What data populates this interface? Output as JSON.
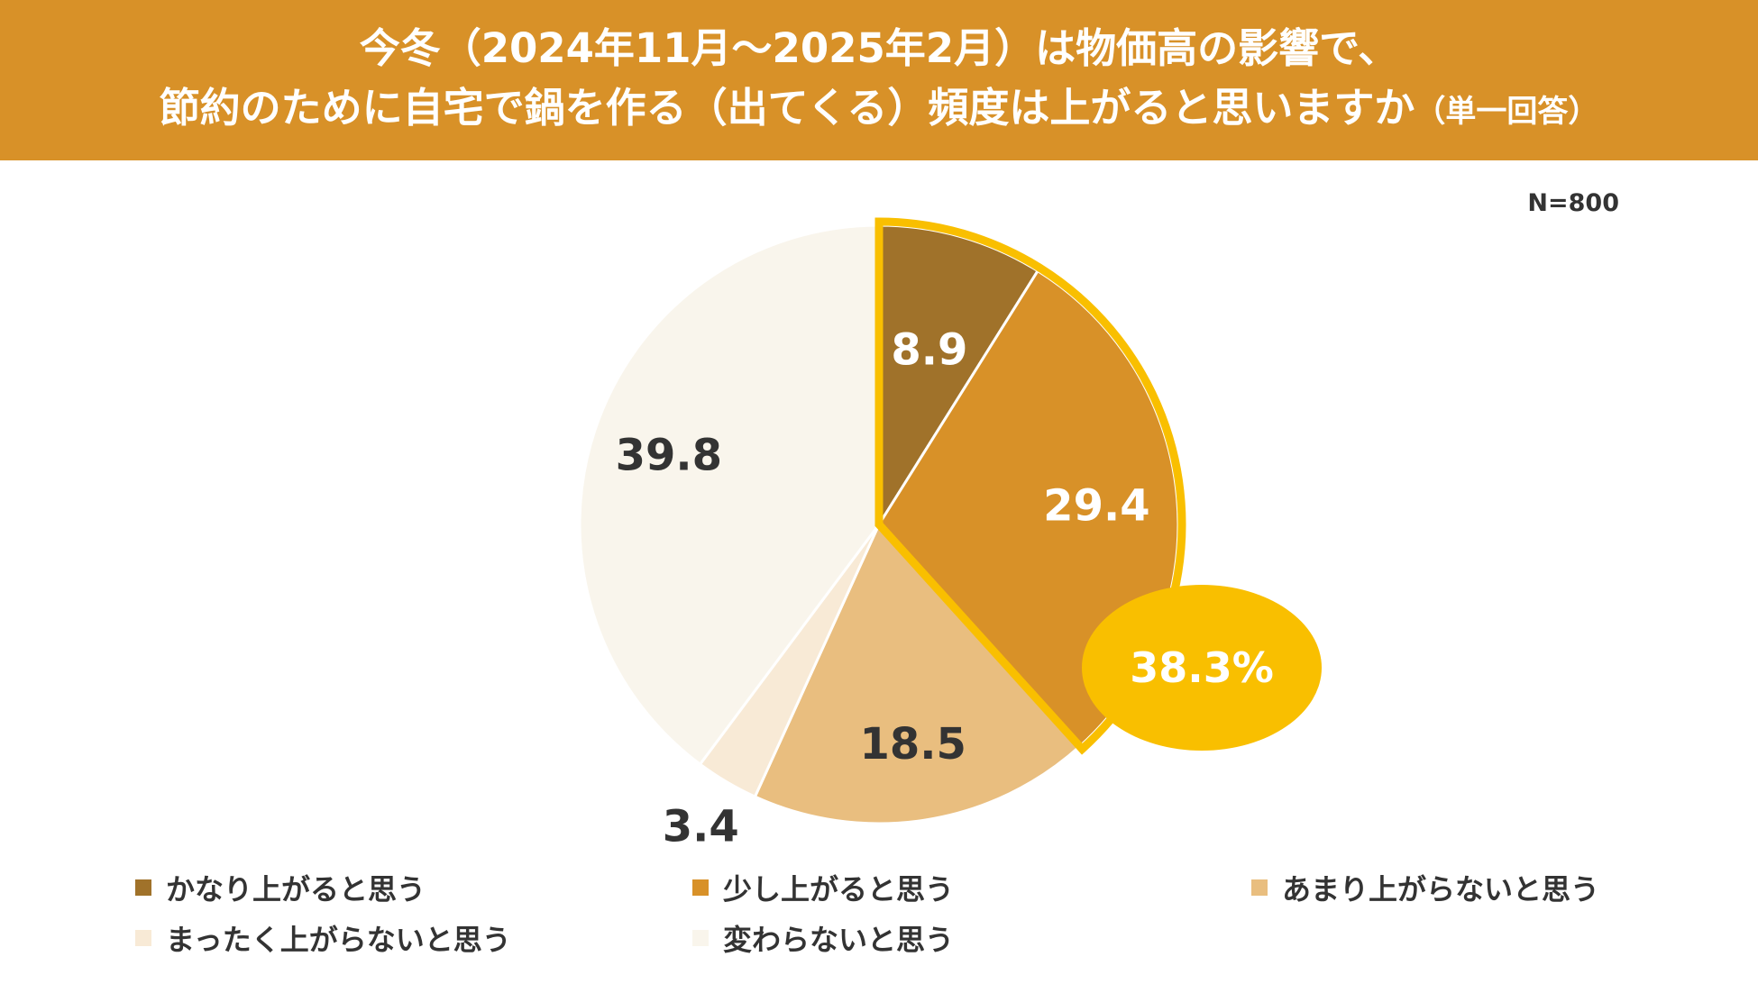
{
  "title_line1": "今冬（2024年11月～2025年2月）は物価高の影響で、",
  "title_line2_main": "節約のために自宅で鍋を作る（出てくる）頻度は上がると思いますか",
  "title_line2_note": "（単一回答）",
  "sample_size": "N=800",
  "colors": {
    "banner": "#D89128",
    "highlight": "#F9BF00"
  },
  "chart_data": {
    "type": "pie",
    "title": "今冬（2024年11月～2025年2月）は物価高の影響で、節約のために自宅で鍋を作る（出てくる）頻度は上がると思いますか",
    "slices": [
      {
        "label": "かなり上がると思う",
        "value": 8.9,
        "value_label": "8.9",
        "color": "#A0722A"
      },
      {
        "label": "少し上がると思う",
        "value": 29.4,
        "value_label": "29.4",
        "color": "#D89128"
      },
      {
        "label": "あまり上がらないと思う",
        "value": 18.5,
        "value_label": "18.5",
        "color": "#E9BE7F"
      },
      {
        "label": "まったく上がらないと思う",
        "value": 3.4,
        "value_label": "3.4",
        "color": "#F8EAD6"
      },
      {
        "label": "変わらないと思う",
        "value": 39.8,
        "value_label": "39.8",
        "color": "#F9F5EC"
      }
    ],
    "highlight": {
      "slices": [
        0,
        1
      ],
      "total_label": "38.3%"
    },
    "start": "12 o'clock, clockwise",
    "legend_position": "bottom"
  }
}
